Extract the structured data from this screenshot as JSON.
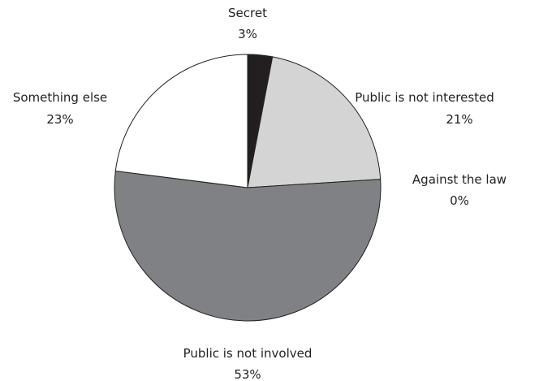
{
  "chart_data": {
    "type": "pie",
    "start_angle_deg": 0,
    "direction": "clockwise",
    "slices": [
      {
        "label": "Secret",
        "value_label": "3%",
        "value": 3,
        "color": "#231f20"
      },
      {
        "label": "Public is not interested",
        "value_label": "21%",
        "value": 21,
        "color": "#d4d4d4"
      },
      {
        "label": "Against the law",
        "value_label": "0%",
        "value": 0,
        "color": "#ffffff"
      },
      {
        "label": "Public is not involved",
        "value_label": "53%",
        "value": 53,
        "color": "#808184"
      },
      {
        "label": "Something else",
        "value_label": "23%",
        "value": 23,
        "color": "#ffffff"
      }
    ]
  }
}
